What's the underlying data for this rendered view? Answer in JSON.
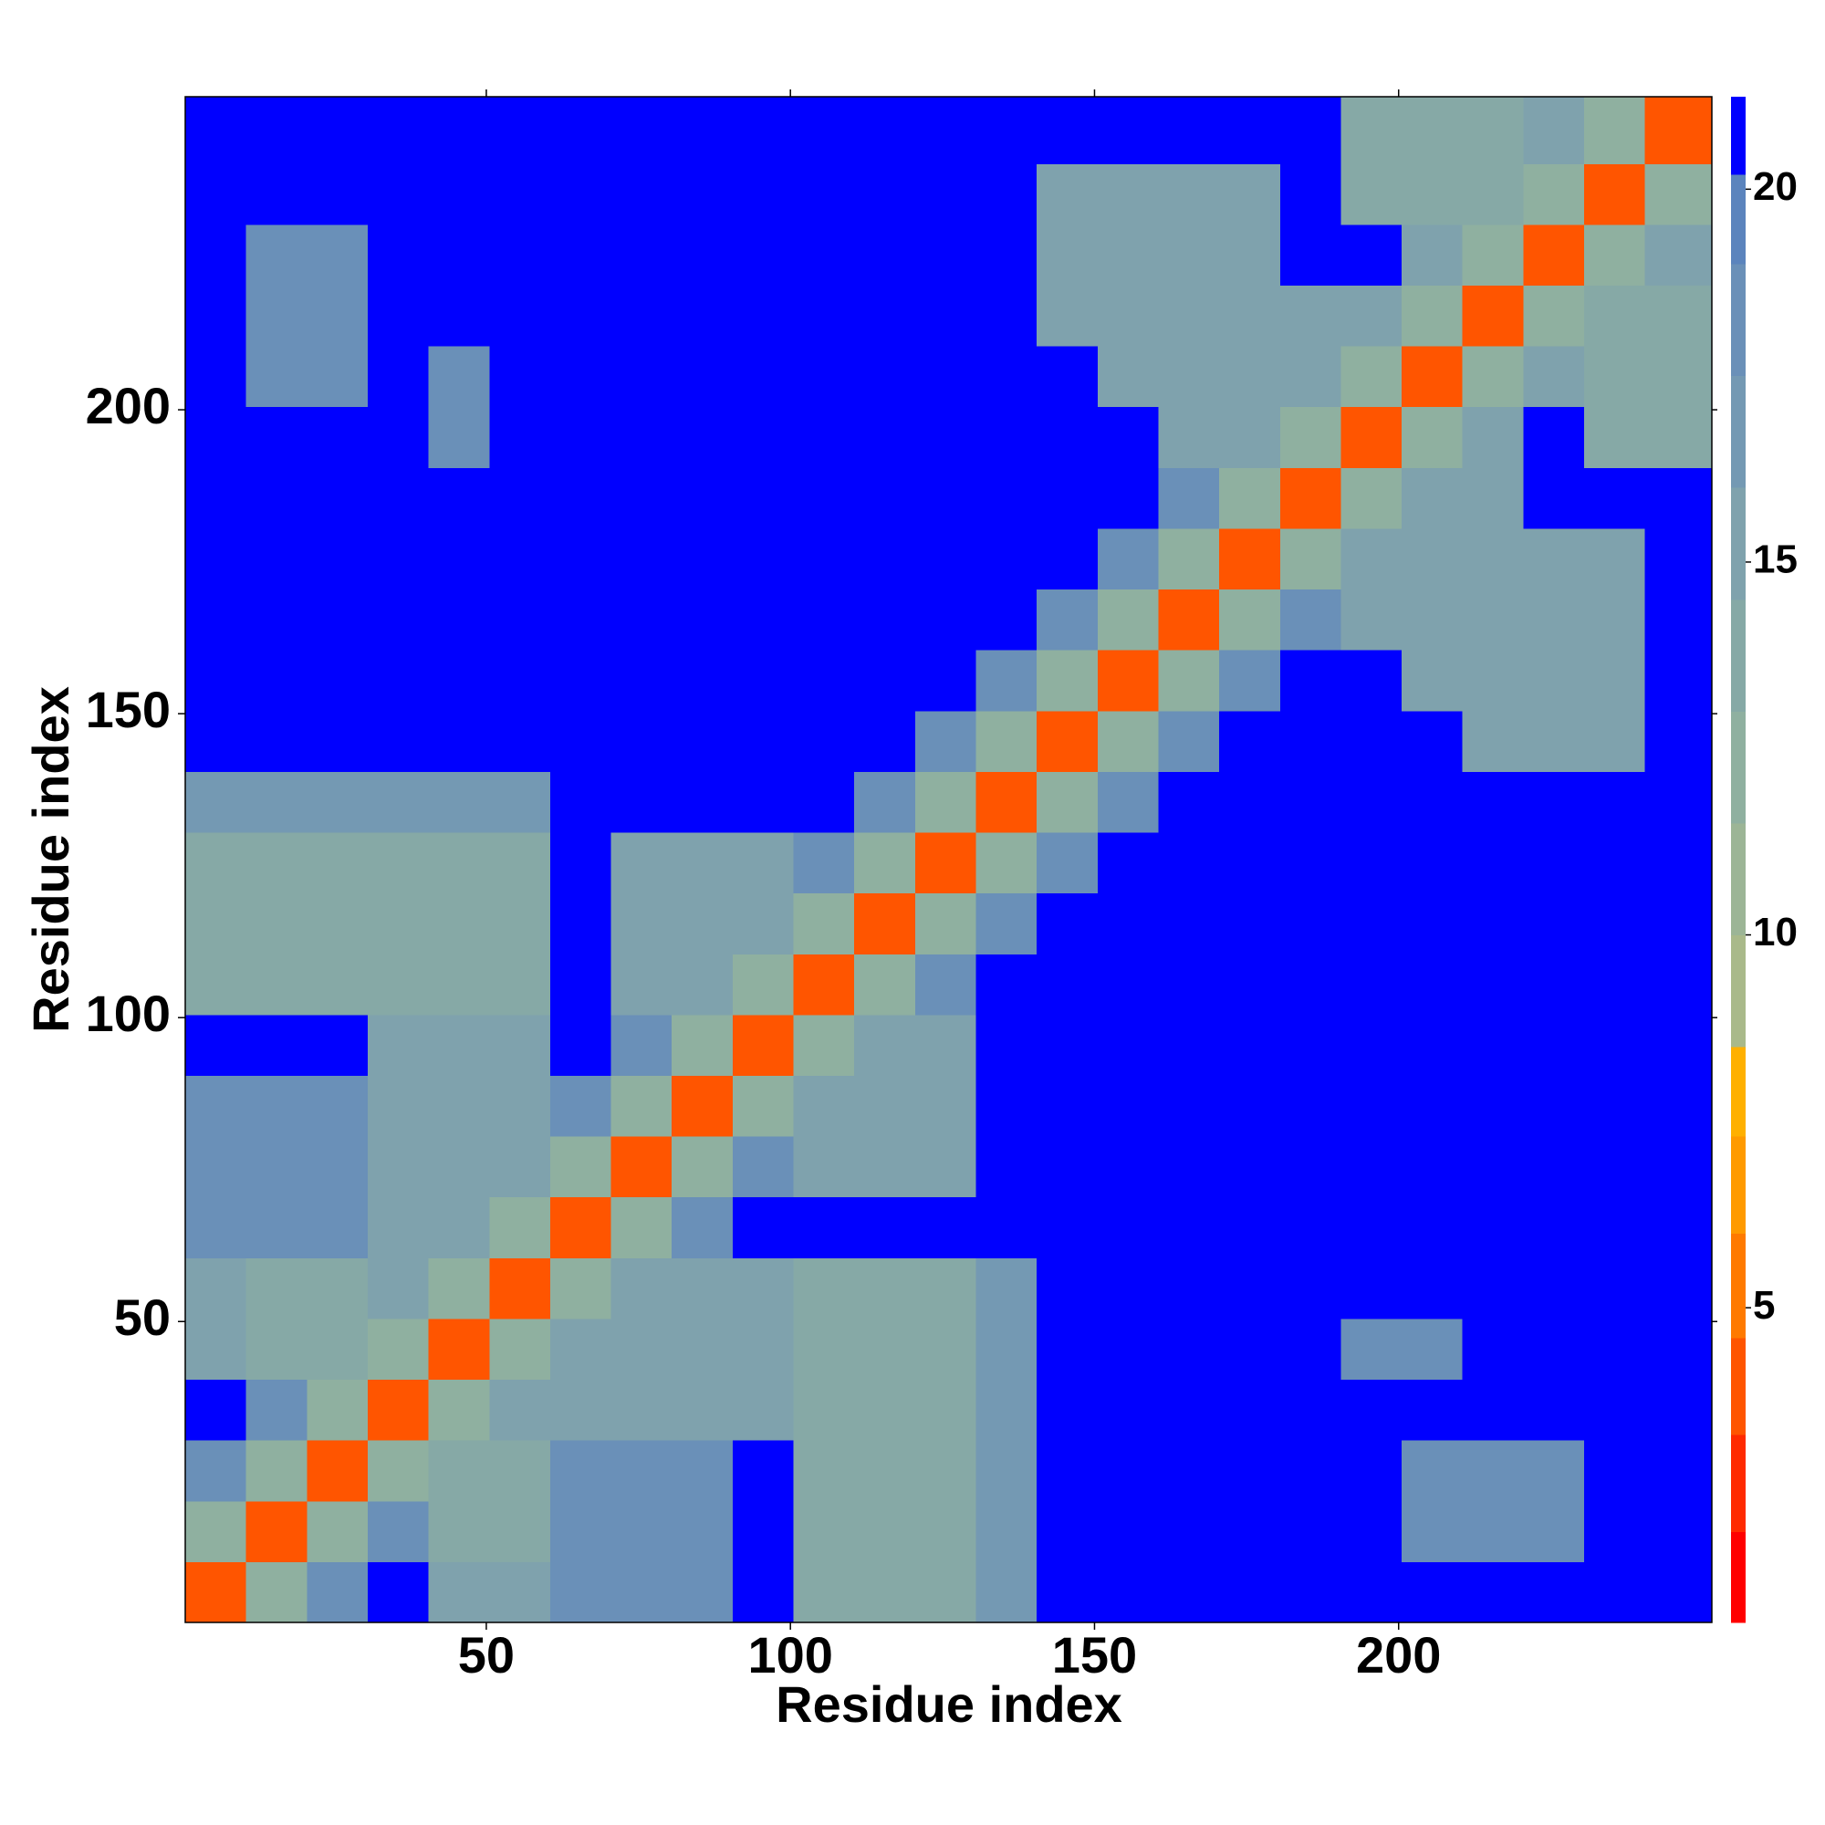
{
  "chart_data": {
    "type": "heatmap",
    "xlabel": "Residue index",
    "ylabel": "Residue index",
    "xlim": [
      0.5,
      251.5
    ],
    "ylim": [
      0.5,
      251.5
    ],
    "xticks": [
      50,
      100,
      150,
      200
    ],
    "yticks": [
      50,
      100,
      150,
      200
    ],
    "xbins": [
      0.5,
      10.5,
      20.5,
      30.5,
      40.5,
      50.5,
      60.5,
      70.5,
      80.5,
      90.5,
      100.5,
      110.5,
      120.5,
      130.5,
      140.5,
      150.5,
      160.5,
      170.5,
      180.5,
      190.5,
      200.5,
      210.5,
      220.5,
      230.5,
      240.5,
      251.5
    ],
    "ybins": [
      0.5,
      10.5,
      20.5,
      30.5,
      40.5,
      50.5,
      60.5,
      70.5,
      80.5,
      90.5,
      100.5,
      110.5,
      120.5,
      130.5,
      140.5,
      150.5,
      160.5,
      170.5,
      180.5,
      190.5,
      200.5,
      210.5,
      220.5,
      230.5,
      240.5,
      251.5
    ],
    "z": [
      [
        4,
        12,
        19,
        21,
        16,
        16,
        18,
        18,
        18,
        21,
        14,
        14,
        14,
        17,
        21,
        21,
        21,
        21,
        21,
        21,
        21,
        21,
        21,
        21,
        21
      ],
      [
        12,
        4,
        12,
        19,
        14,
        14,
        18,
        18,
        18,
        21,
        14,
        14,
        14,
        17,
        21,
        21,
        21,
        21,
        21,
        21,
        18,
        18,
        18,
        21,
        21
      ],
      [
        19,
        12,
        4,
        12,
        14,
        14,
        18,
        18,
        18,
        21,
        14,
        14,
        14,
        17,
        21,
        21,
        21,
        21,
        21,
        21,
        18,
        18,
        18,
        21,
        21
      ],
      [
        21,
        19,
        12,
        4,
        12,
        15,
        16,
        16,
        16,
        16,
        14,
        14,
        14,
        17,
        21,
        21,
        21,
        21,
        21,
        21,
        21,
        21,
        21,
        21,
        21
      ],
      [
        16,
        14,
        14,
        12,
        4,
        12,
        16,
        16,
        16,
        16,
        14,
        14,
        14,
        17,
        21,
        21,
        21,
        21,
        21,
        19,
        19,
        21,
        21,
        21,
        21
      ],
      [
        16,
        14,
        14,
        15,
        12,
        4,
        12,
        16,
        16,
        16,
        14,
        14,
        14,
        17,
        21,
        21,
        21,
        21,
        21,
        21,
        21,
        21,
        21,
        21,
        21
      ],
      [
        18,
        18,
        18,
        16,
        16,
        12,
        4,
        12,
        19,
        21,
        21,
        21,
        21,
        21,
        21,
        21,
        21,
        21,
        21,
        21,
        21,
        21,
        21,
        21,
        21
      ],
      [
        18,
        18,
        18,
        16,
        16,
        16,
        12,
        4,
        12,
        19,
        16,
        16,
        16,
        21,
        21,
        21,
        21,
        21,
        21,
        21,
        21,
        21,
        21,
        21,
        21
      ],
      [
        18,
        18,
        18,
        16,
        16,
        16,
        19,
        12,
        4,
        12,
        15,
        16,
        16,
        21,
        21,
        21,
        21,
        21,
        21,
        21,
        21,
        21,
        21,
        21,
        21
      ],
      [
        21,
        21,
        21,
        16,
        16,
        16,
        21,
        19,
        12,
        4,
        12,
        16,
        16,
        21,
        21,
        21,
        21,
        21,
        21,
        21,
        21,
        21,
        21,
        21,
        21
      ],
      [
        14,
        14,
        14,
        14,
        14,
        14,
        21,
        16,
        15,
        12,
        4,
        12,
        19,
        21,
        21,
        21,
        21,
        21,
        21,
        21,
        21,
        21,
        21,
        21,
        21
      ],
      [
        14,
        14,
        14,
        14,
        14,
        14,
        21,
        16,
        16,
        16,
        12,
        4,
        12,
        19,
        21,
        21,
        21,
        21,
        21,
        21,
        21,
        21,
        21,
        21,
        21
      ],
      [
        14,
        14,
        14,
        14,
        14,
        14,
        21,
        16,
        16,
        16,
        19,
        12,
        4,
        12,
        19,
        21,
        21,
        21,
        21,
        21,
        21,
        21,
        21,
        21,
        21
      ],
      [
        17,
        17,
        17,
        17,
        17,
        17,
        21,
        21,
        21,
        21,
        21,
        19,
        12,
        4,
        12,
        19,
        21,
        21,
        21,
        21,
        21,
        21,
        21,
        21,
        21
      ],
      [
        21,
        21,
        21,
        21,
        21,
        21,
        21,
        21,
        21,
        21,
        21,
        21,
        19,
        12,
        4,
        12,
        19,
        21,
        21,
        21,
        21,
        16,
        16,
        16,
        21
      ],
      [
        21,
        21,
        21,
        21,
        21,
        21,
        21,
        21,
        21,
        21,
        21,
        21,
        21,
        19,
        12,
        4,
        12,
        19,
        21,
        21,
        15,
        15,
        16,
        16,
        21
      ],
      [
        21,
        21,
        21,
        21,
        21,
        21,
        21,
        21,
        21,
        21,
        21,
        21,
        21,
        21,
        19,
        12,
        4,
        12,
        19,
        15,
        15,
        15,
        16,
        16,
        21
      ],
      [
        21,
        21,
        21,
        21,
        21,
        21,
        21,
        21,
        21,
        21,
        21,
        21,
        21,
        21,
        21,
        19,
        12,
        4,
        12,
        15,
        15,
        15,
        16,
        16,
        21
      ],
      [
        21,
        21,
        21,
        21,
        21,
        21,
        21,
        21,
        21,
        21,
        21,
        21,
        21,
        21,
        21,
        21,
        19,
        12,
        4,
        12,
        15,
        15,
        21,
        21,
        21
      ],
      [
        21,
        21,
        21,
        21,
        19,
        21,
        21,
        21,
        21,
        21,
        21,
        21,
        21,
        21,
        21,
        21,
        15,
        15,
        12,
        4,
        12,
        15,
        21,
        14,
        14
      ],
      [
        21,
        18,
        18,
        21,
        19,
        21,
        21,
        21,
        21,
        21,
        21,
        21,
        21,
        21,
        21,
        15,
        15,
        15,
        15,
        12,
        4,
        12,
        15,
        14,
        14
      ],
      [
        21,
        18,
        18,
        21,
        21,
        21,
        21,
        21,
        21,
        21,
        21,
        21,
        21,
        21,
        16,
        15,
        15,
        15,
        15,
        15,
        12,
        4,
        12,
        14,
        14
      ],
      [
        21,
        18,
        18,
        21,
        21,
        21,
        21,
        21,
        21,
        21,
        21,
        21,
        21,
        21,
        16,
        16,
        16,
        16,
        21,
        21,
        15,
        12,
        4,
        12,
        15
      ],
      [
        21,
        21,
        21,
        21,
        21,
        21,
        21,
        21,
        21,
        21,
        21,
        21,
        21,
        21,
        16,
        16,
        16,
        16,
        21,
        14,
        14,
        14,
        12,
        4,
        12
      ],
      [
        21,
        21,
        21,
        21,
        21,
        21,
        21,
        21,
        21,
        21,
        21,
        21,
        21,
        21,
        21,
        21,
        21,
        21,
        21,
        14,
        14,
        14,
        15,
        12,
        4
      ]
    ],
    "clim": [
      0.78,
      21.24
    ],
    "cticks": [
      5,
      10,
      15,
      20
    ],
    "colorscale": [
      {
        "max": 2,
        "color": "#ff0000"
      },
      {
        "max": 3.3,
        "color": "#ff2a00"
      },
      {
        "max": 4.6,
        "color": "#ff5500"
      },
      {
        "max": 6,
        "color": "#ff7a00"
      },
      {
        "max": 7.3,
        "color": "#ff9a00"
      },
      {
        "max": 8.5,
        "color": "#ffb000"
      },
      {
        "max": 10,
        "color": "#a9b98a"
      },
      {
        "max": 11.5,
        "color": "#9cb596"
      },
      {
        "max": 13,
        "color": "#8fb0a0"
      },
      {
        "max": 14.5,
        "color": "#86a9a6"
      },
      {
        "max": 16,
        "color": "#7fa2ad"
      },
      {
        "max": 17.5,
        "color": "#7499b3"
      },
      {
        "max": 19,
        "color": "#6a90b8"
      },
      {
        "max": 20.2,
        "color": "#5b84bd"
      },
      {
        "max": 21.24,
        "color": "#0000ff"
      }
    ]
  }
}
